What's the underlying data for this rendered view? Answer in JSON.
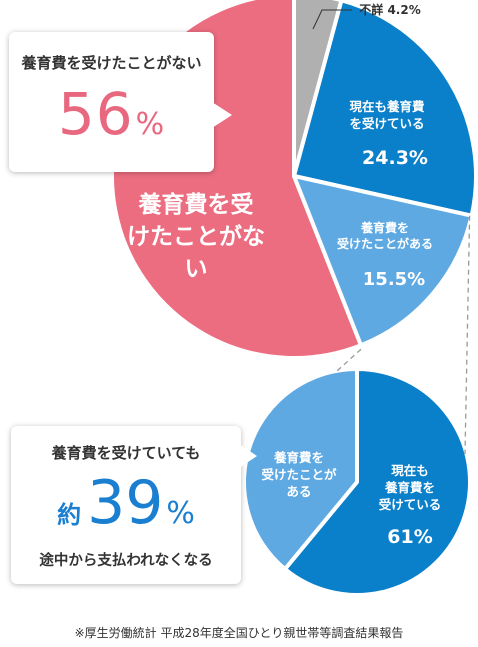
{
  "chart_data": [
    {
      "type": "pie",
      "slices": [
        {
          "label": "養育費を受けたことがない",
          "value": 56.0,
          "color": "#ec6d80",
          "value_label": ""
        },
        {
          "label": "不詳",
          "value": 4.2,
          "color": "#b0b0b0",
          "value_label": "4.2%"
        },
        {
          "label": "現在も養育費を受けている",
          "value": 24.3,
          "color": "#0a7fca",
          "value_label": "24.3%"
        },
        {
          "label": "養育費を受けたことがある",
          "value": 15.5,
          "color": "#5fa9e3",
          "value_label": "15.5%"
        }
      ]
    },
    {
      "type": "pie",
      "slices": [
        {
          "label": "現在も養育費を受けている",
          "value": 61,
          "color": "#0a7fca",
          "value_label": "61%"
        },
        {
          "label": "養育費を受けたことがある",
          "value": 39,
          "color": "#5fa9e3",
          "value_label": ""
        }
      ]
    }
  ],
  "callout_top": {
    "heading": "養育費を受けたことがない",
    "value": "56",
    "unit": "%"
  },
  "callout_bottom": {
    "heading": "養育費を受けていても",
    "prefix": "約",
    "value": "39",
    "unit": "%",
    "footer": "途中から支払われなくなる"
  },
  "source_note": "※厚生労働統計 平成28年度全国ひとり親世帯等調査結果報告"
}
